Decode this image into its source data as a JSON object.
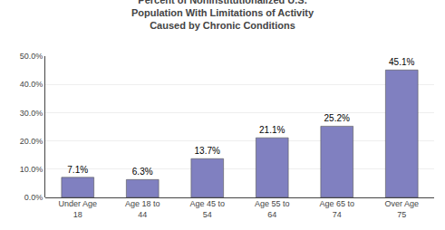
{
  "chart_data": {
    "type": "bar",
    "title": "Percent of Noninstitutionalized U.S.\nPopulation With Limitations of Activity\nCaused by Chronic Conditions",
    "categories": [
      "Under Age\n18",
      "Age 18 to\n44",
      "Age 45 to\n54",
      "Age 55 to\n64",
      "Age 65 to\n74",
      "Over Age\n75"
    ],
    "values": [
      7.1,
      6.3,
      13.7,
      21.1,
      25.2,
      45.1
    ],
    "value_labels": [
      "7.1%",
      "6.3%",
      "13.7%",
      "21.1%",
      "25.2%",
      "45.1%"
    ],
    "data_labels": true,
    "color": "#8080C0",
    "ylim": [
      0,
      50
    ],
    "yticks": [
      {
        "value": 0,
        "label": "0.0%"
      },
      {
        "value": 10,
        "label": "10.0%"
      },
      {
        "value": 20,
        "label": "20.0%"
      },
      {
        "value": 30,
        "label": "30.0%"
      },
      {
        "value": 40,
        "label": "40.0%"
      },
      {
        "value": 50,
        "label": "50.0%"
      }
    ],
    "grid": true
  }
}
